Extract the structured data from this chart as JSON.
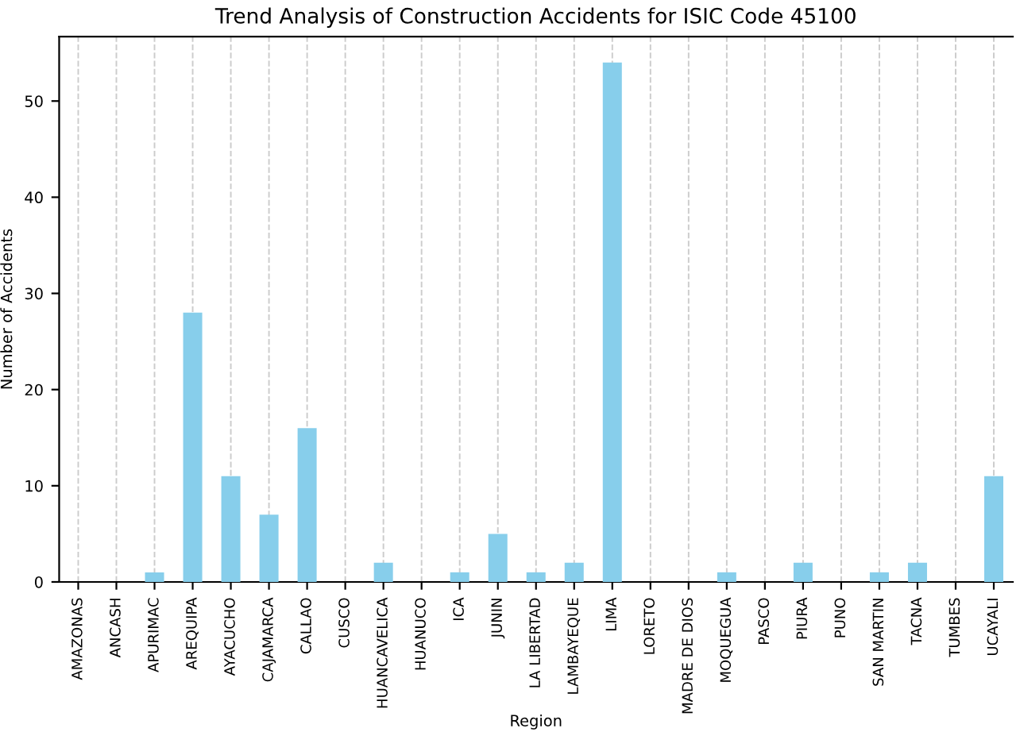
{
  "chart_data": {
    "type": "bar",
    "title": "Trend Analysis of Construction Accidents for ISIC Code 45100",
    "xlabel": "Region",
    "ylabel": "Number of Accidents",
    "categories": [
      "AMAZONAS",
      "ANCASH",
      "APURIMAC",
      "AREQUIPA",
      "AYACUCHO",
      "CAJAMARCA",
      "CALLAO",
      "CUSCO",
      "HUANCAVELICA",
      "HUANUCO",
      "ICA",
      "JUNIN",
      "LA LIBERTAD",
      "LAMBAYEQUE",
      "LIMA",
      "LORETO",
      "MADRE DE DIOS",
      "MOQUEGUA",
      "PASCO",
      "PIURA",
      "PUNO",
      "SAN MARTIN",
      "TACNA",
      "TUMBES",
      "UCAYALI"
    ],
    "values": [
      0,
      0,
      1,
      28,
      11,
      7,
      16,
      0,
      2,
      0,
      1,
      5,
      1,
      2,
      54,
      0,
      0,
      1,
      0,
      2,
      0,
      1,
      2,
      0,
      11
    ],
    "color": "#87ceeb",
    "ylim": [
      0,
      56.7
    ],
    "yticks": [
      0,
      10,
      20,
      30,
      40,
      50
    ],
    "grid": "x",
    "legend": false
  }
}
